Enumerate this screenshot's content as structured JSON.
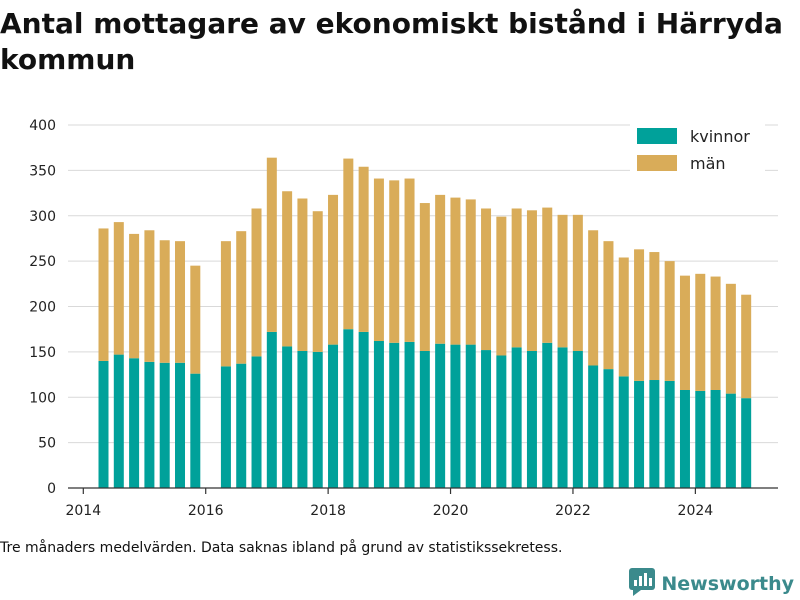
{
  "title": "Antal mottagare av ekonomiskt bistånd i Härryda kommun",
  "note": "Tre månaders medelvärden. Data saknas ibland på grund av statistikssekretess.",
  "brand": {
    "name": "Newsworthy",
    "icon": "newsworthy-logo-icon",
    "color": "#3b8a8c"
  },
  "chart_data": {
    "type": "bar",
    "stacked": true,
    "title": "Antal mottagare av ekonomiskt bistånd i Härryda kommun",
    "xlabel": "",
    "ylabel": "",
    "ylim": [
      0,
      400
    ],
    "yticks": [
      0,
      50,
      100,
      150,
      200,
      250,
      300,
      350,
      400
    ],
    "xlim": [
      2013.75,
      2025.35
    ],
    "xticks": [
      2014,
      2016,
      2018,
      2020,
      2022,
      2024
    ],
    "grid": "horizontal",
    "legend_position": "top-right",
    "x": [
      2014.33,
      2014.58,
      2014.83,
      2015.08,
      2015.33,
      2015.58,
      2015.83,
      2016.33,
      2016.58,
      2016.83,
      2017.08,
      2017.33,
      2017.58,
      2017.83,
      2018.08,
      2018.33,
      2018.58,
      2018.83,
      2019.08,
      2019.33,
      2019.58,
      2019.83,
      2020.08,
      2020.33,
      2020.58,
      2020.83,
      2021.08,
      2021.33,
      2021.58,
      2021.83,
      2022.08,
      2022.33,
      2022.58,
      2022.83,
      2023.08,
      2023.33,
      2023.58,
      2023.83,
      2024.08,
      2024.33,
      2024.58,
      2024.83
    ],
    "series": [
      {
        "name": "kvinnor",
        "color": "#00a19a",
        "values": [
          140,
          147,
          143,
          139,
          138,
          138,
          126,
          134,
          137,
          145,
          172,
          156,
          151,
          150,
          158,
          175,
          172,
          162,
          160,
          161,
          151,
          159,
          158,
          158,
          152,
          146,
          155,
          151,
          160,
          155,
          151,
          135,
          131,
          123,
          118,
          119,
          118,
          108,
          107,
          108,
          104,
          99
        ]
      },
      {
        "name": "män",
        "color": "#d9ac59",
        "values": [
          146,
          146,
          137,
          145,
          135,
          134,
          119,
          138,
          146,
          163,
          192,
          171,
          168,
          155,
          165,
          188,
          182,
          179,
          179,
          180,
          163,
          164,
          162,
          160,
          156,
          153,
          153,
          155,
          149,
          146,
          150,
          149,
          141,
          131,
          145,
          141,
          132,
          126,
          129,
          125,
          121,
          114
        ]
      }
    ]
  }
}
